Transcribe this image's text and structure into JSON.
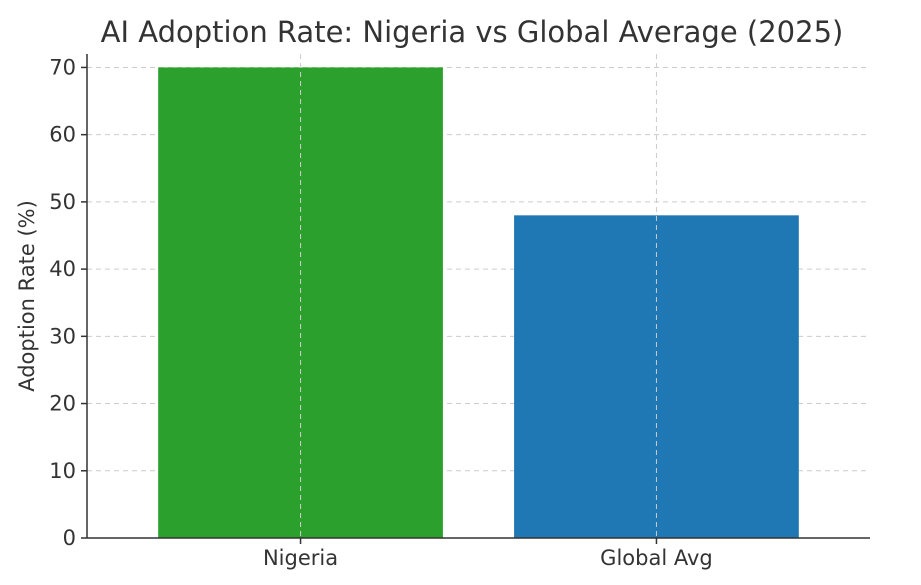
{
  "chart_data": {
    "type": "bar",
    "title": "AI Adoption Rate: Nigeria vs Global Average (2025)",
    "xlabel": "",
    "ylabel": "Adoption Rate (%)",
    "categories": [
      "Nigeria",
      "Global Avg"
    ],
    "values": [
      70,
      48
    ],
    "colors": [
      "#2ca02c",
      "#1f77b4"
    ],
    "ylim": [
      0,
      72
    ],
    "yticks": [
      0,
      10,
      20,
      30,
      40,
      50,
      60,
      70
    ],
    "grid": true
  }
}
